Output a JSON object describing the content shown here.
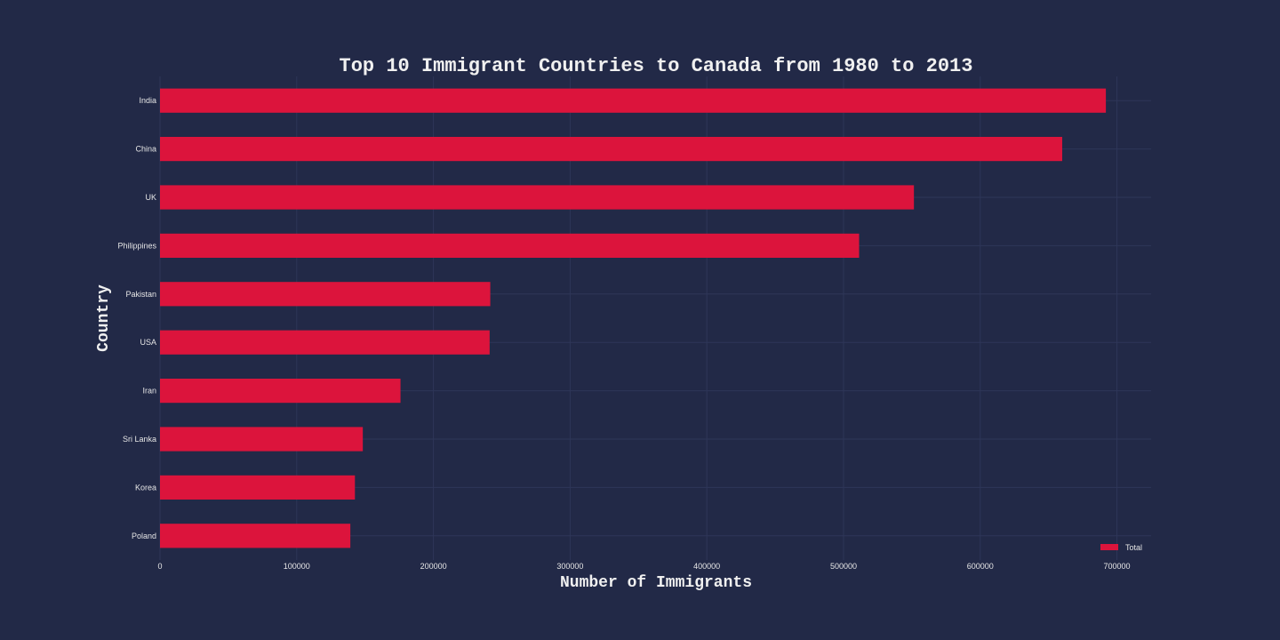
{
  "chart_data": {
    "type": "bar",
    "orientation": "horizontal",
    "title": "Top 10 Immigrant Countries to Canada from 1980 to 2013",
    "xlabel": "Number of Immigrants",
    "ylabel": "Country",
    "categories": [
      "India",
      "China",
      "UK",
      "Philippines",
      "Pakistan",
      "USA",
      "Iran",
      "Sri Lanka",
      "Korea",
      "Poland"
    ],
    "series": [
      {
        "name": "Total",
        "values": [
          691904,
          659962,
          551500,
          511391,
          241600,
          241122,
          175923,
          148358,
          142581,
          139241
        ]
      }
    ],
    "xlim": [
      0,
      725000
    ],
    "xticks": [
      0,
      100000,
      200000,
      300000,
      400000,
      500000,
      600000,
      700000
    ],
    "grid": true,
    "legend_position": "bottom-right",
    "colors": {
      "background": "#222947",
      "bar": "#dc143c",
      "grid": "#2e3658",
      "text": "#e6e6e6"
    }
  }
}
